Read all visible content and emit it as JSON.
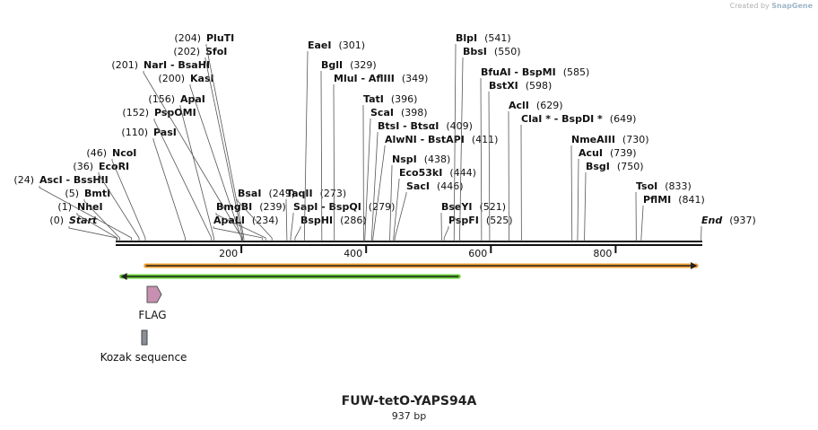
{
  "credit": {
    "prefix": "Created by",
    "brand": "SnapGene"
  },
  "map": {
    "title": "FUW-tetO-YAPS94A",
    "length_label": "937 bp",
    "length": 937,
    "ruler": [
      "200",
      "400",
      "600",
      "800"
    ],
    "colors": {
      "backbone": "#111111",
      "orange": "#f0a030",
      "green": "#66cc33",
      "flag": "#c890b0",
      "kozak": "#8a8f98"
    }
  },
  "sites": [
    {
      "name": "Start",
      "pos": "(0)",
      "bp": 0,
      "italic": true
    },
    {
      "name": "NheI",
      "pos": "(1)",
      "bp": 1
    },
    {
      "name": "BmtI",
      "pos": "(5)",
      "bp": 5
    },
    {
      "name": "AscI - BssHII",
      "pos": "(24)",
      "bp": 24
    },
    {
      "name": "EcoRI",
      "pos": "(36)",
      "bp": 36
    },
    {
      "name": "NcoI",
      "pos": "(46)",
      "bp": 46
    },
    {
      "name": "PasI",
      "pos": "(110)",
      "bp": 110
    },
    {
      "name": "PspOMI",
      "pos": "(152)",
      "bp": 152
    },
    {
      "name": "ApaI",
      "pos": "(156)",
      "bp": 156
    },
    {
      "name": "KasI",
      "pos": "(200)",
      "bp": 200
    },
    {
      "name": "NarI - BsaHI",
      "pos": "(201)",
      "bp": 201
    },
    {
      "name": "SfoI",
      "pos": "(202)",
      "bp": 202
    },
    {
      "name": "PluTI",
      "pos": "(204)",
      "bp": 204
    },
    {
      "name": "ApaLI",
      "pos": "(234)",
      "bp": 234
    },
    {
      "name": "BmgBI",
      "pos": "(239)",
      "bp": 239
    },
    {
      "name": "BsaI",
      "pos": "(249)",
      "bp": 249
    },
    {
      "name": "TaqII",
      "pos": "(273)",
      "bp": 273
    },
    {
      "name": "SapI - BspQI",
      "pos": "(279)",
      "bp": 279
    },
    {
      "name": "BspHI",
      "pos": "(286)",
      "bp": 286
    },
    {
      "name": "EaeI",
      "pos": "(301)",
      "bp": 301
    },
    {
      "name": "BglI",
      "pos": "(329)",
      "bp": 329
    },
    {
      "name": "MluI - AflIII",
      "pos": "(349)",
      "bp": 349
    },
    {
      "name": "TatI",
      "pos": "(396)",
      "bp": 396
    },
    {
      "name": "ScaI",
      "pos": "(398)",
      "bp": 398
    },
    {
      "name": "BtsI - BtsαI",
      "pos": "(409)",
      "bp": 409
    },
    {
      "name": "AlwNI - BstAPI",
      "pos": "(411)",
      "bp": 411
    },
    {
      "name": "NspI",
      "pos": "(438)",
      "bp": 438
    },
    {
      "name": "Eco53kI",
      "pos": "(444)",
      "bp": 444
    },
    {
      "name": "SacI",
      "pos": "(446)",
      "bp": 446
    },
    {
      "name": "BseYI",
      "pos": "(521)",
      "bp": 521
    },
    {
      "name": "PspFI",
      "pos": "(525)",
      "bp": 525
    },
    {
      "name": "BlpI",
      "pos": "(541)",
      "bp": 541
    },
    {
      "name": "BbsI",
      "pos": "(550)",
      "bp": 550
    },
    {
      "name": "BfuAI - BspMI",
      "pos": "(585)",
      "bp": 585
    },
    {
      "name": "BstXI",
      "pos": "(598)",
      "bp": 598
    },
    {
      "name": "AclI",
      "pos": "(629)",
      "bp": 629
    },
    {
      "name": "ClaI * - BspDI *",
      "pos": "(649)",
      "bp": 649
    },
    {
      "name": "NmeAIII",
      "pos": "(730)",
      "bp": 730
    },
    {
      "name": "AcuI",
      "pos": "(739)",
      "bp": 739
    },
    {
      "name": "BsgI",
      "pos": "(750)",
      "bp": 750
    },
    {
      "name": "TsoI",
      "pos": "(833)",
      "bp": 833
    },
    {
      "name": "PflMI",
      "pos": "(841)",
      "bp": 841
    },
    {
      "name": "End",
      "pos": "(937)",
      "bp": 937,
      "italic": true
    }
  ],
  "features": [
    {
      "name": "FLAG",
      "shape": "arrow",
      "start": 50,
      "end": 72
    },
    {
      "name": "Kozak sequence",
      "shape": "box",
      "start": 40,
      "end": 50
    }
  ],
  "orfs": [
    {
      "direction": "forward",
      "start": 47,
      "end": 929,
      "color": "orange"
    },
    {
      "direction": "reverse",
      "start": 8,
      "end": 548,
      "color": "green"
    }
  ]
}
